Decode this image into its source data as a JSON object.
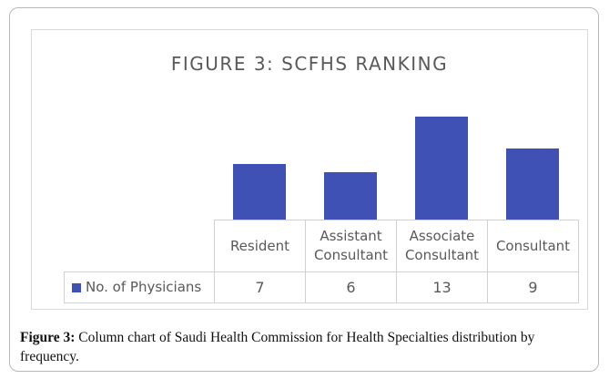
{
  "chart_data": {
    "type": "bar",
    "title": "FIGURE 3: SCFHS RANKING",
    "categories": [
      "Resident",
      "Assistant Consultant",
      "Associate Consultant",
      "Consultant"
    ],
    "series": [
      {
        "name": "No. of Physicians",
        "color": "#3f51b5",
        "values": [
          7,
          6,
          13,
          9
        ]
      }
    ]
  },
  "caption": {
    "label": "Figure 3:",
    "text": "Column chart of Saudi Health Commission for Health Specialties distribution by frequency."
  }
}
